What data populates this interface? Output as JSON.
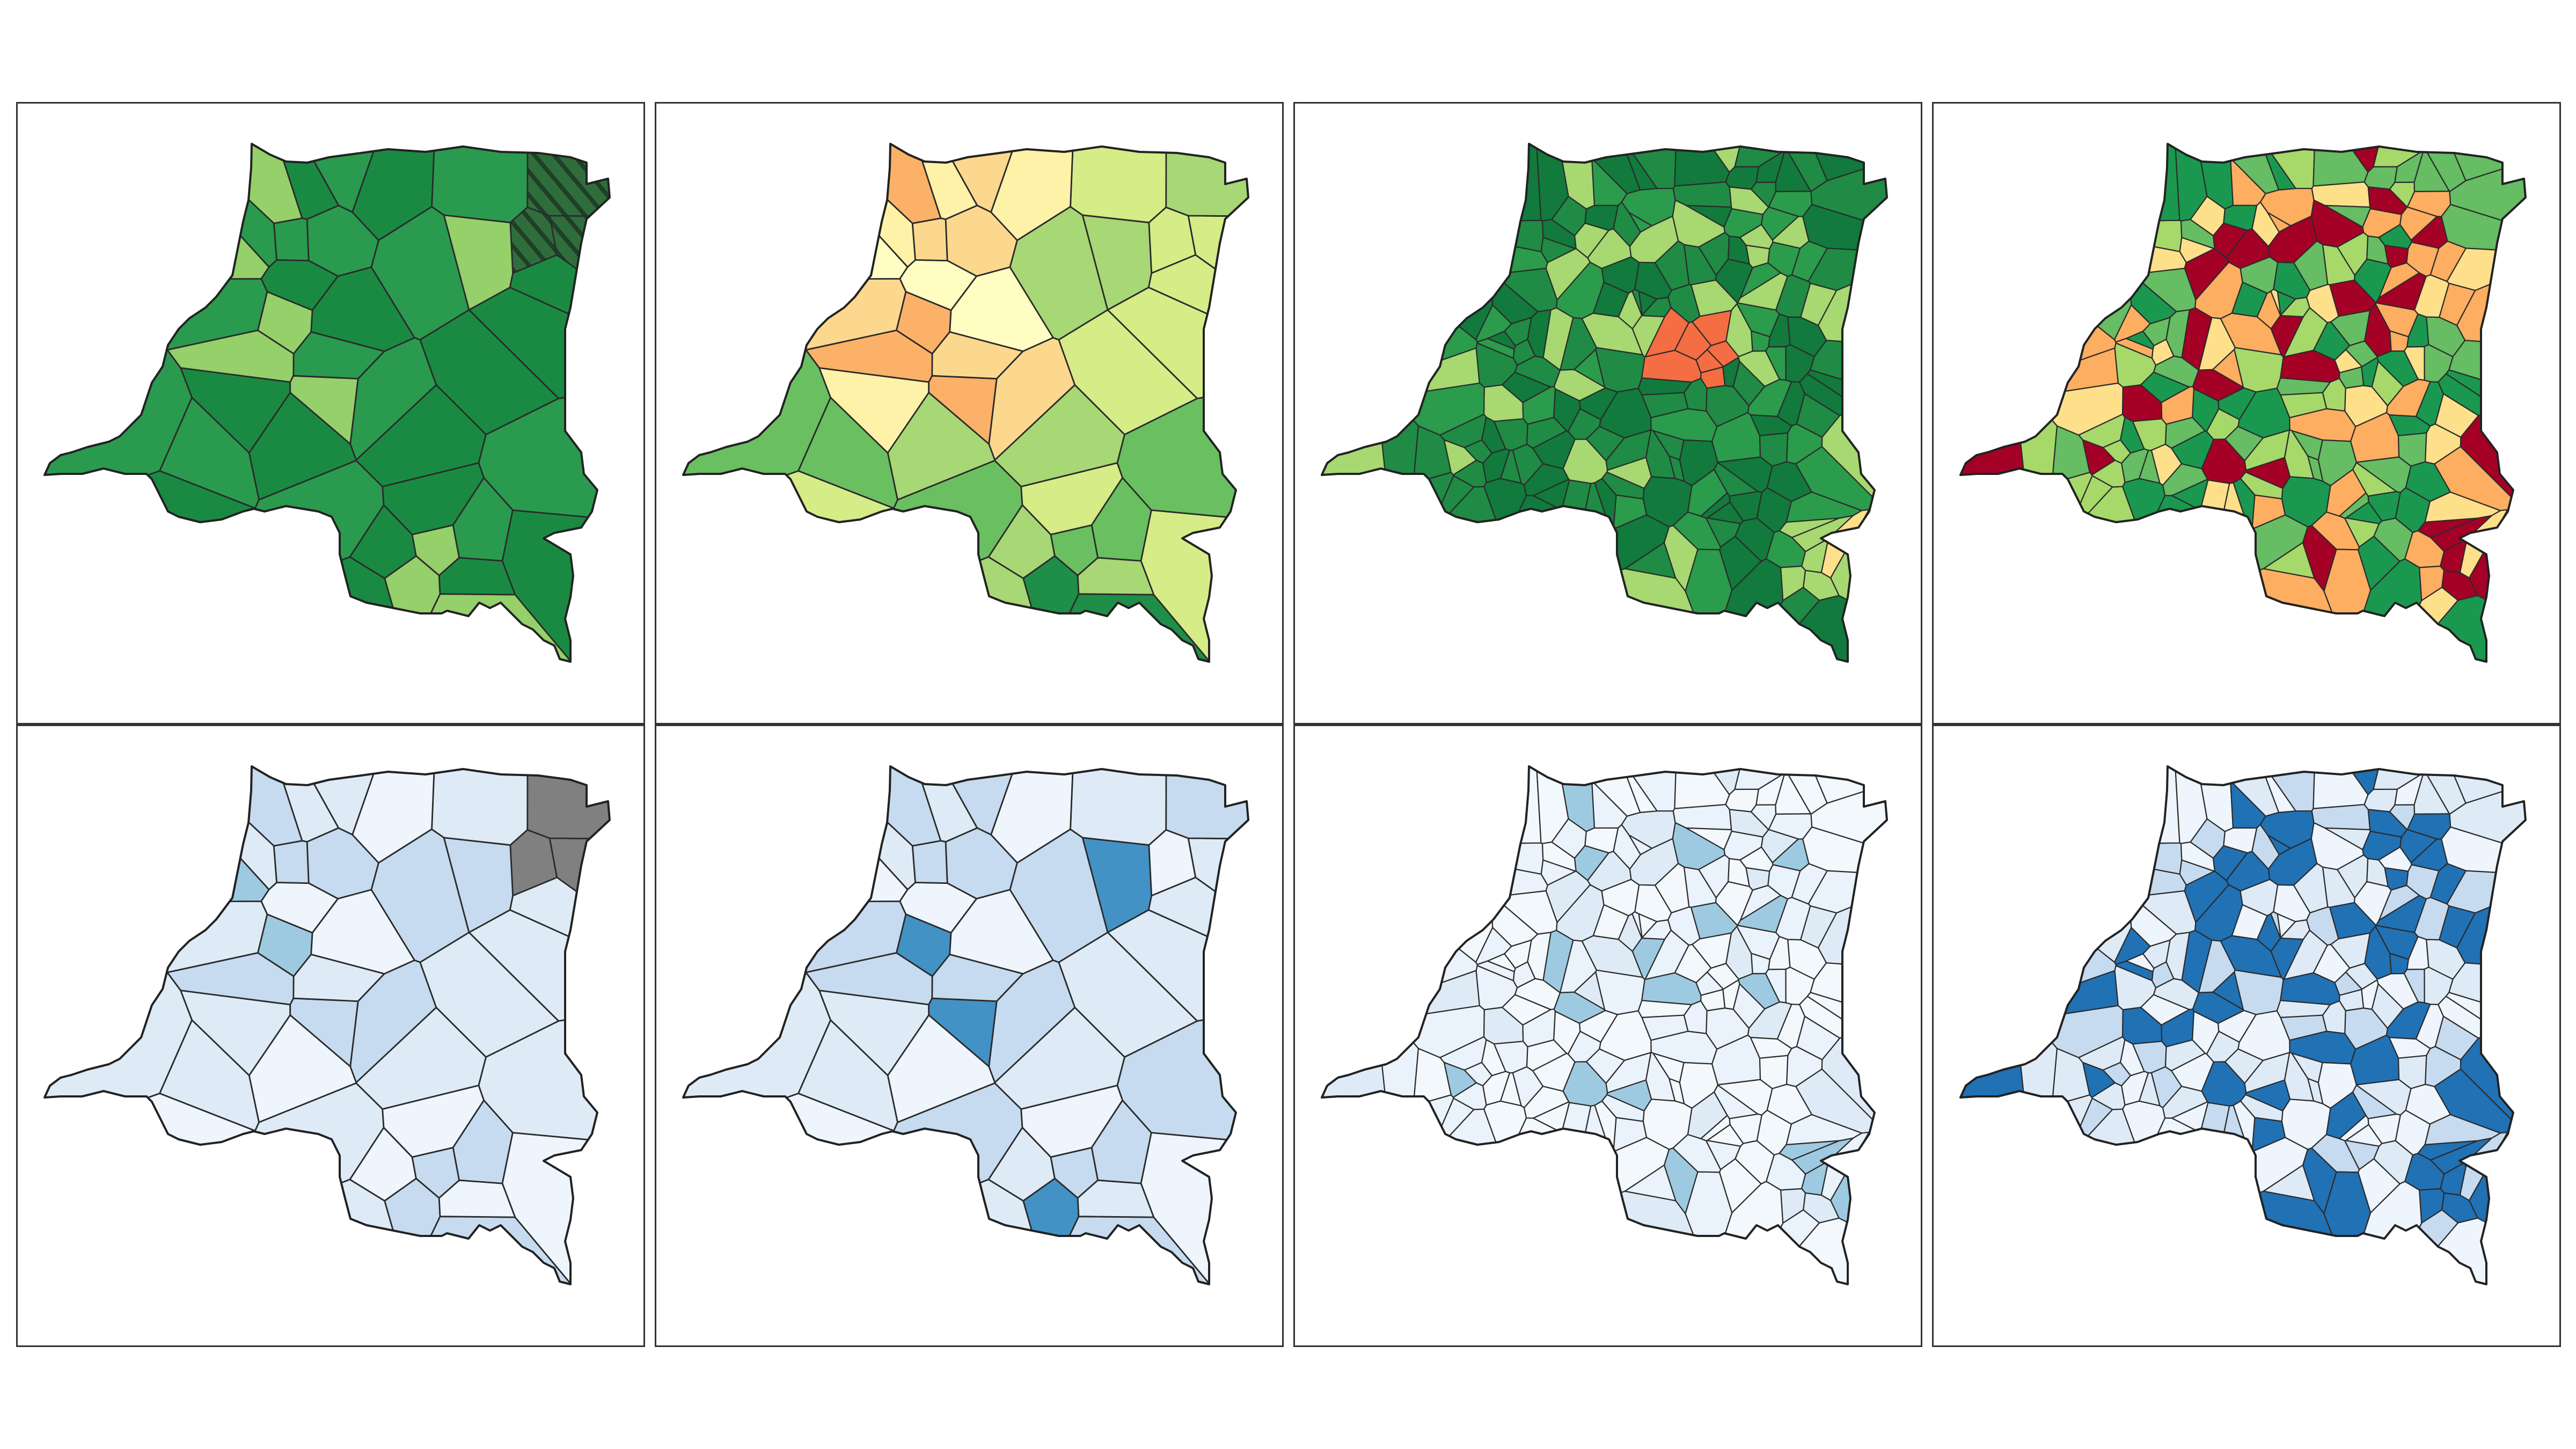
{
  "figure": {
    "description_visible_text": "",
    "layout": {
      "rows": 2,
      "columns": 4
    }
  },
  "panels": [
    {
      "id": "top-1",
      "row": 0,
      "col": 0,
      "scheme": "green",
      "detail": "coarse",
      "palette": [
        "#1a8a43",
        "#2a9a4f",
        "#3caa56",
        "#5cb85c",
        "#95d06a"
      ],
      "special": "hatched-northeast",
      "special_color": "#2f6e3c"
    },
    {
      "id": "top-2",
      "row": 0,
      "col": 1,
      "scheme": "green-yellow-orange",
      "detail": "coarse",
      "palette": [
        "#fffdc2",
        "#fef2a8",
        "#fcd88e",
        "#fbb168",
        "#d5ec87",
        "#a8d776",
        "#6abf61",
        "#1f8e48"
      ]
    },
    {
      "id": "top-3",
      "row": 0,
      "col": 2,
      "scheme": "green",
      "detail": "fine",
      "palette": [
        "#117a3c",
        "#1f8b44",
        "#2b9b4c",
        "#62bd5f",
        "#a7d871"
      ],
      "special": "few-warm",
      "special_colors": [
        "#f46d43",
        "#fee08b"
      ]
    },
    {
      "id": "top-4",
      "row": 0,
      "col": 3,
      "scheme": "red-yellow-green",
      "detail": "fine",
      "palette": [
        "#1a9850",
        "#66bd63",
        "#a6d96a",
        "#d9ef8b",
        "#fee08b",
        "#fdae61",
        "#f46d43",
        "#d73027",
        "#a50026"
      ]
    },
    {
      "id": "bottom-1",
      "row": 1,
      "col": 0,
      "scheme": "blue",
      "detail": "coarse",
      "palette": [
        "#eef5fc",
        "#deebf7",
        "#c6dbef",
        "#9ecae1"
      ],
      "special": "grey-northeast",
      "special_color": "#808080"
    },
    {
      "id": "bottom-2",
      "row": 1,
      "col": 1,
      "scheme": "blue",
      "detail": "coarse",
      "palette": [
        "#eef5fc",
        "#deebf7",
        "#c6dbef",
        "#9ecae1",
        "#6baed6",
        "#4292c6"
      ]
    },
    {
      "id": "bottom-3",
      "row": 1,
      "col": 2,
      "scheme": "blue",
      "detail": "fine",
      "palette": [
        "#f3f8fd",
        "#eaf2fb",
        "#deebf7",
        "#c6dbef",
        "#9ecae1"
      ]
    },
    {
      "id": "bottom-4",
      "row": 1,
      "col": 3,
      "scheme": "blue",
      "detail": "fine",
      "palette": [
        "#eef5fc",
        "#deebf7",
        "#c6dbef",
        "#9ecae1",
        "#6baed6",
        "#4292c6",
        "#2171b5"
      ]
    }
  ]
}
